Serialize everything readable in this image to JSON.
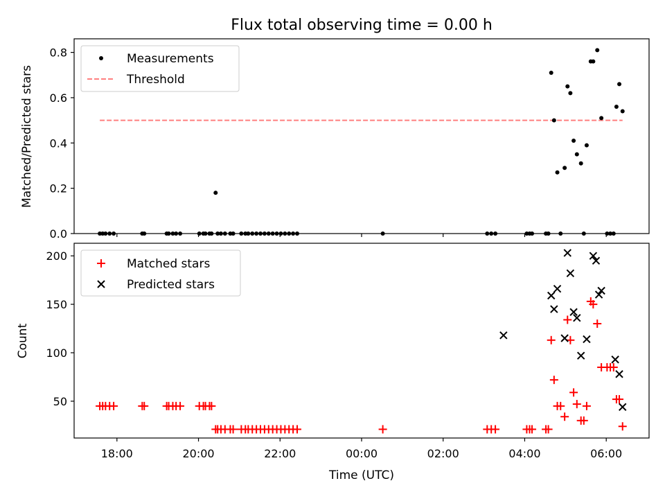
{
  "chart_data": [
    {
      "type": "scatter",
      "title": "Flux total observing time = 0.00 h",
      "xlabel": "",
      "ylabel": "Matched/Predicted stars",
      "ylim": [
        0,
        0.86
      ],
      "yticks": [
        "0.0",
        "0.2",
        "0.4",
        "0.6",
        "0.8"
      ],
      "grid": false,
      "legend": "top-left",
      "series": [
        {
          "name": "Measurements",
          "marker": "dot",
          "color": "#000000",
          "x": [
            -6.42,
            -6.35,
            -6.28,
            -6.18,
            -6.08,
            -5.38,
            -5.33,
            -4.78,
            -4.73,
            -4.63,
            -4.55,
            -4.45,
            -3.98,
            -3.88,
            -3.83,
            -3.73,
            -3.68,
            -3.58,
            -3.53,
            -3.45,
            -3.35,
            -3.22,
            -3.15,
            -2.95,
            -2.85,
            -2.78,
            -2.68,
            -2.58,
            -2.48,
            -2.38,
            -2.28,
            -2.18,
            -2.08,
            -1.98,
            -1.88,
            -1.78,
            -1.68,
            -1.58,
            0.52,
            3.08,
            3.18,
            3.28,
            4.05,
            4.12,
            4.18,
            4.52,
            4.58,
            4.65,
            4.72,
            4.8,
            4.88,
            4.98,
            5.05,
            5.12,
            5.2,
            5.28,
            5.38,
            5.45,
            5.52,
            5.62,
            5.68,
            5.78,
            5.88,
            6.02,
            6.1,
            6.18,
            6.25,
            6.32,
            6.4
          ],
          "y": [
            0,
            0,
            0,
            0,
            0,
            0,
            0,
            0,
            0,
            0,
            0,
            0,
            0,
            0,
            0,
            0,
            0,
            0.18,
            0,
            0,
            0,
            0,
            0,
            0,
            0,
            0,
            0,
            0,
            0,
            0,
            0,
            0,
            0,
            0,
            0,
            0,
            0,
            0,
            0,
            0,
            0,
            0,
            0,
            0,
            0,
            0,
            0,
            0.71,
            0.5,
            0.27,
            0,
            0.29,
            0.65,
            0.62,
            0.41,
            0.35,
            0.31,
            0,
            0.39,
            0.76,
            0.76,
            0.81,
            0.51,
            0,
            0,
            0,
            0.56,
            0.66,
            0.54
          ]
        },
        {
          "name": "Threshold",
          "marker": "dashed-line",
          "color": "#ff7f7f",
          "x": [
            -6.42,
            6.4
          ],
          "y": [
            0.5,
            0.5
          ]
        }
      ]
    },
    {
      "type": "scatter",
      "title": "",
      "xlabel": "Time (UTC)",
      "ylabel": "Count",
      "xlim": [
        -7.05,
        7.05
      ],
      "ylim": [
        12,
        213
      ],
      "xticks": [
        {
          "value": -6,
          "label": "18:00"
        },
        {
          "value": -4,
          "label": "20:00"
        },
        {
          "value": -2,
          "label": "22:00"
        },
        {
          "value": 0,
          "label": "00:00"
        },
        {
          "value": 2,
          "label": "02:00"
        },
        {
          "value": 4,
          "label": "04:00"
        },
        {
          "value": 6,
          "label": "06:00"
        }
      ],
      "yticks": [
        "50",
        "100",
        "150",
        "200"
      ],
      "grid": false,
      "legend": "top-left",
      "series": [
        {
          "name": "Matched stars",
          "marker": "plus",
          "color": "#ff0000",
          "x": [
            -6.42,
            -6.35,
            -6.28,
            -6.18,
            -6.08,
            -5.38,
            -5.33,
            -4.78,
            -4.73,
            -4.63,
            -4.55,
            -4.45,
            -3.98,
            -3.88,
            -3.83,
            -3.73,
            -3.68,
            -3.58,
            -3.53,
            -3.45,
            -3.35,
            -3.22,
            -3.15,
            -2.95,
            -2.85,
            -2.78,
            -2.68,
            -2.58,
            -2.48,
            -2.38,
            -2.28,
            -2.18,
            -2.08,
            -1.98,
            -1.88,
            -1.78,
            -1.68,
            -1.58,
            0.52,
            3.08,
            3.18,
            3.28,
            4.05,
            4.12,
            4.18,
            4.52,
            4.58,
            4.65,
            4.72,
            4.8,
            4.88,
            4.98,
            5.05,
            5.12,
            5.2,
            5.28,
            5.38,
            5.45,
            5.52,
            5.62,
            5.68,
            5.78,
            5.88,
            6.02,
            6.1,
            6.18,
            6.25,
            6.32,
            6.4
          ],
          "y": [
            45,
            45,
            45,
            45,
            45,
            45,
            45,
            45,
            45,
            45,
            45,
            45,
            45,
            45,
            45,
            45,
            45,
            21,
            21,
            21,
            21,
            21,
            21,
            21,
            21,
            21,
            21,
            21,
            21,
            21,
            21,
            21,
            21,
            21,
            21,
            21,
            21,
            21,
            21,
            21,
            21,
            21,
            21,
            21,
            21,
            21,
            21,
            113,
            72,
            45,
            45,
            34,
            134,
            113,
            59,
            47,
            30,
            30,
            45,
            153,
            150,
            130,
            85,
            85,
            85,
            85,
            52,
            52,
            24
          ]
        },
        {
          "name": "Predicted stars",
          "marker": "x",
          "color": "#000000",
          "x": [
            3.48,
            4.65,
            4.72,
            4.8,
            4.98,
            5.05,
            5.12,
            5.2,
            5.28,
            5.38,
            5.52,
            5.68,
            5.75,
            5.82,
            5.88,
            6.22,
            6.32,
            6.4
          ],
          "y": [
            118,
            159,
            145,
            166,
            115,
            203,
            182,
            142,
            136,
            97,
            114,
            200,
            195,
            160,
            164,
            93,
            78,
            44
          ]
        }
      ]
    }
  ]
}
